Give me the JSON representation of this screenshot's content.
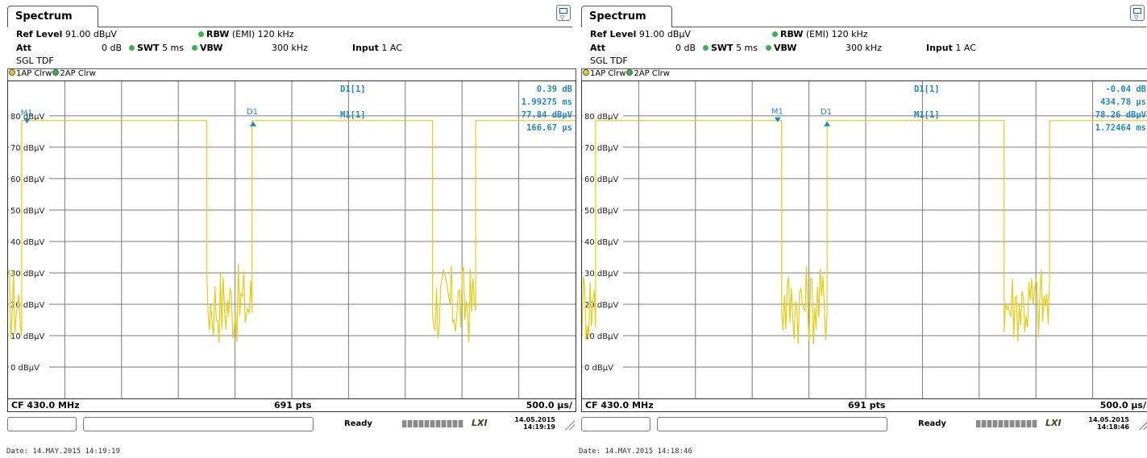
{
  "colors": {
    "trace": "#e6cc14",
    "marker": "#1f88c8",
    "grid": "#7a7a7a",
    "trace1_dot": "#e6cc14",
    "trace2_dot": "#38b44a"
  },
  "panels": [
    {
      "tab_label": "Spectrum",
      "ref_level_label": "Ref Level",
      "ref_level_value": "91.00 dBµV",
      "att_label": "Att",
      "att_value": "0 dB",
      "swt_label": "SWT",
      "swt_value": "5 ms",
      "rbw_label": "RBW",
      "rbw_value": "(EMI) 120 kHz",
      "vbw_label": "VBW",
      "vbw_value": "300 kHz",
      "input_label": "Input",
      "input_value": "1 AC",
      "mode": "SGL TDF",
      "trace1_label": "1AP Clrw",
      "trace2_label": "2AP Clrw",
      "marker_table": [
        {
          "name": "D1[1]",
          "values": [
            "0.39 dB",
            "1.99275 ms"
          ]
        },
        {
          "name": "M1[1]",
          "values": [
            "77.84 dBµV",
            "166.67 µs"
          ]
        }
      ],
      "y_tick_labels": [
        "80 dBµV",
        "70 dBµV",
        "60 dBµV",
        "50 dBµV",
        "40 dBµV",
        "30 dBµV",
        "20 dBµV",
        "10 dBµV",
        "0 dBµV"
      ],
      "marker_labels": {
        "m1": "M1",
        "d1": "D1"
      },
      "footer": {
        "cf": "CF 430.0 MHz",
        "pts": "691 pts",
        "div": "500.0 µs/"
      },
      "status": {
        "ready": "Ready",
        "lxi": "LXI",
        "date": "14.05.2015",
        "time": "14:19:19"
      },
      "datestamp": "Date: 14.MAY.2015  14:19:19",
      "chart_data": {
        "type": "line",
        "x_unit": "µs",
        "y_unit": "dBµV",
        "xlim": [
          0,
          5000
        ],
        "ylim": [
          -10,
          91
        ],
        "y_ticks": [
          80,
          70,
          60,
          50,
          40,
          30,
          20,
          10,
          0
        ],
        "x_divisions": 10,
        "markers": [
          {
            "name": "M1",
            "x": 166.67,
            "y": 77.84
          },
          {
            "name": "D1",
            "x": 2159.42,
            "y": 78.23
          }
        ],
        "trace_segments": [
          {
            "from": 0,
            "to": 120,
            "level": "noise"
          },
          {
            "from": 120,
            "to": 1750,
            "level": 78.5
          },
          {
            "from": 1750,
            "to": 2150,
            "level": "noise"
          },
          {
            "from": 2150,
            "to": 3740,
            "level": 78.5
          },
          {
            "from": 3740,
            "to": 4120,
            "level": "noise"
          },
          {
            "from": 4120,
            "to": 5000,
            "level": 78.5
          }
        ],
        "noise_range": [
          15,
          33
        ]
      }
    },
    {
      "tab_label": "Spectrum",
      "ref_level_label": "Ref Level",
      "ref_level_value": "91.00 dBµV",
      "att_label": "Att",
      "att_value": "0 dB",
      "swt_label": "SWT",
      "swt_value": "5 ms",
      "rbw_label": "RBW",
      "rbw_value": "(EMI) 120 kHz",
      "vbw_label": "VBW",
      "vbw_value": "300 kHz",
      "input_label": "Input",
      "input_value": "1 AC",
      "mode": "SGL TDF",
      "trace1_label": "1AP Clrw",
      "trace2_label": "2AP Clrw",
      "marker_table": [
        {
          "name": "D1[1]",
          "values": [
            "-0.04 dB",
            "434.78 µs"
          ]
        },
        {
          "name": "M1[1]",
          "values": [
            "78.26 dBµV",
            "1.72464 ms"
          ]
        }
      ],
      "y_tick_labels": [
        "80 dBµV",
        "70 dBµV",
        "60 dBµV",
        "50 dBµV",
        "40 dBµV",
        "30 dBµV",
        "20 dBµV",
        "10 dBµV",
        "0 dBµV"
      ],
      "marker_labels": {
        "m1": "M1",
        "d1": "D1"
      },
      "footer": {
        "cf": "CF 430.0 MHz",
        "pts": "691 pts",
        "div": "500.0 µs/"
      },
      "status": {
        "ready": "Ready",
        "lxi": "LXI",
        "date": "14.05.2015",
        "time": "14:18:46"
      },
      "datestamp": "Date: 14.MAY.2015  14:18:46",
      "chart_data": {
        "type": "line",
        "x_unit": "µs",
        "y_unit": "dBµV",
        "xlim": [
          0,
          5000
        ],
        "ylim": [
          -10,
          91
        ],
        "y_ticks": [
          80,
          70,
          60,
          50,
          40,
          30,
          20,
          10,
          0
        ],
        "x_divisions": 10,
        "markers": [
          {
            "name": "M1",
            "x": 1724.64,
            "y": 78.26
          },
          {
            "name": "D1",
            "x": 2159.42,
            "y": 78.22
          }
        ],
        "trace_segments": [
          {
            "from": 0,
            "to": 120,
            "level": "noise"
          },
          {
            "from": 120,
            "to": 1760,
            "level": 78.5
          },
          {
            "from": 1760,
            "to": 2160,
            "level": "noise"
          },
          {
            "from": 2160,
            "to": 3720,
            "level": 78.5
          },
          {
            "from": 3720,
            "to": 4120,
            "level": "noise"
          },
          {
            "from": 4120,
            "to": 5000,
            "level": 78.5
          }
        ],
        "noise_range": [
          15,
          33
        ]
      }
    }
  ]
}
